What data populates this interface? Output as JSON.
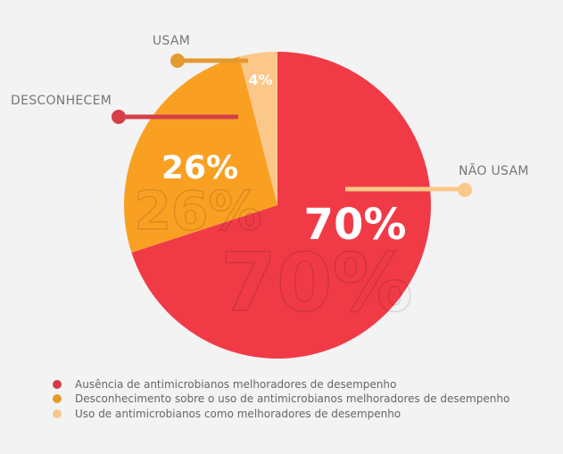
{
  "chart_data": {
    "type": "pie",
    "slices": [
      {
        "label": "Ausência de antimicrobianos melhoradores de desempenho",
        "value": 70,
        "data_label": "70%",
        "callout": "NÃO USAM",
        "color": "#F03B47"
      },
      {
        "label": "Desconhecimento sobre o uso de antimicrobianos melhoradores de desempenho",
        "value": 26,
        "data_label": "26%",
        "callout": "DESCONHECEM",
        "color": "#F9A023"
      },
      {
        "label": "Uso de antimicrobianos como melhoradores de desempenho",
        "value": 4,
        "data_label": "4%",
        "callout": "USAM",
        "color": "#FCC88A"
      }
    ],
    "legend_position": "bottom-left",
    "legend_colors": [
      "#D93A45",
      "#E59A2E",
      "#F5C98C"
    ],
    "callout_colors": {
      "NÃO USAM": "#FCC88A",
      "DESCONHECEM": "#D43F48",
      "USAM": "#E39A30"
    }
  }
}
